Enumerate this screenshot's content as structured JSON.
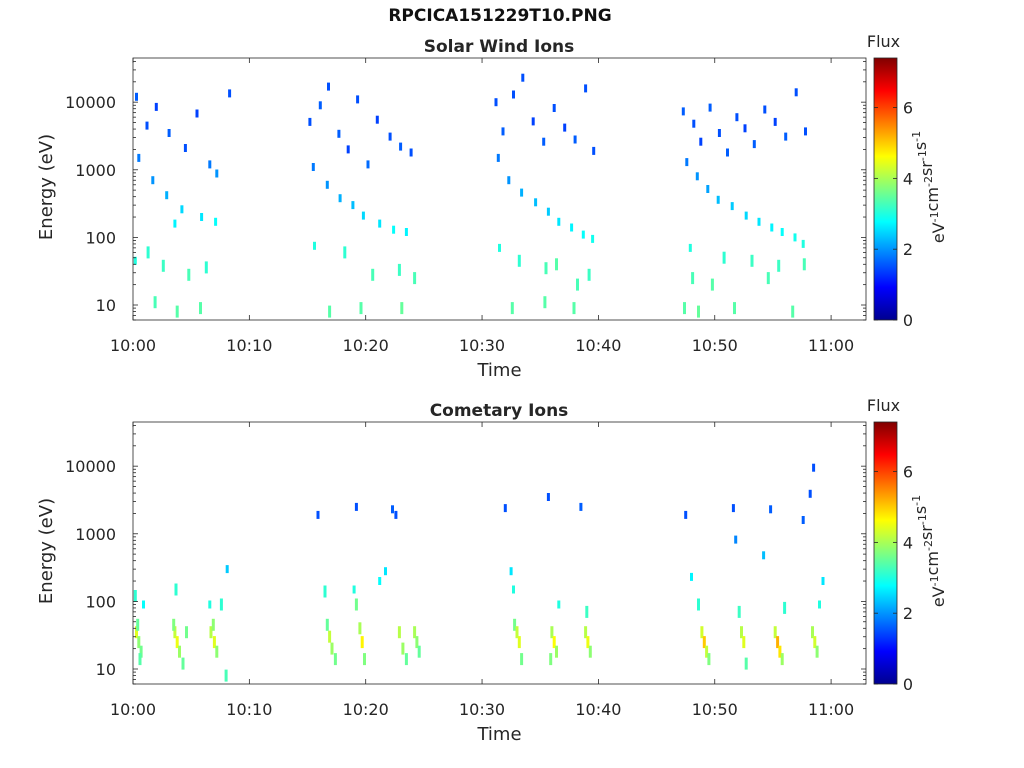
{
  "figure": {
    "title": "RPCICA151229T10.PNG"
  },
  "colorbar": {
    "label": "Flux",
    "unit_base": "eV",
    "unit_parts": [
      {
        "t": "eV",
        "sup": "-1"
      },
      {
        "t": "cm",
        "sup": "-2"
      },
      {
        "t": "sr",
        "sup": "-1"
      },
      {
        "t": "s",
        "sup": "-1"
      }
    ],
    "ticks": [
      "0",
      "2",
      "4",
      "6"
    ],
    "range": [
      0,
      7.4
    ],
    "colormap": "jet"
  },
  "chart_data": [
    {
      "type": "heatmap",
      "title": "Solar Wind Ions",
      "xlabel": "Time",
      "ylabel": "Energy (eV)",
      "y_scale": "log",
      "x_range": [
        "10:00",
        "11:03"
      ],
      "ylim": [
        6,
        45000
      ],
      "xticks": [
        "10:00",
        "10:10",
        "10:20",
        "10:30",
        "10:40",
        "10:50",
        "11:00"
      ],
      "yticks": [
        "10",
        "100",
        "1000",
        "10000"
      ],
      "segments": [
        {
          "start": "10:00",
          "end": "10:09"
        },
        {
          "start": "10:15",
          "end": "10:25"
        },
        {
          "start": "10:31",
          "end": "10:40"
        },
        {
          "start": "10:47",
          "end": "10:58"
        }
      ],
      "cells": [
        [
          0.3,
          12000,
          1.6
        ],
        [
          1.2,
          4500,
          1.5
        ],
        [
          2.0,
          8500,
          1.4
        ],
        [
          3.1,
          3500,
          1.6
        ],
        [
          4.5,
          2100,
          1.5
        ],
        [
          5.5,
          6800,
          1.4
        ],
        [
          6.6,
          1200,
          1.8
        ],
        [
          7.2,
          880,
          2.0
        ],
        [
          8.3,
          13500,
          1.5
        ],
        [
          0.5,
          1500,
          1.8
        ],
        [
          1.7,
          700,
          2.0
        ],
        [
          2.9,
          420,
          2.2
        ],
        [
          4.2,
          260,
          2.5
        ],
        [
          5.9,
          200,
          2.6
        ],
        [
          7.1,
          170,
          2.8
        ],
        [
          3.6,
          160,
          2.7
        ],
        [
          0.2,
          45,
          3.0
        ],
        [
          1.3,
          60,
          3.1
        ],
        [
          2.6,
          38,
          3.2
        ],
        [
          4.8,
          28,
          3.3
        ],
        [
          6.3,
          36,
          3.1
        ],
        [
          1.9,
          11,
          3.3
        ],
        [
          3.8,
          8,
          3.4
        ],
        [
          5.8,
          9,
          3.4
        ],
        [
          15.2,
          5100,
          1.5
        ],
        [
          16.1,
          9000,
          1.6
        ],
        [
          16.8,
          17000,
          1.5
        ],
        [
          17.7,
          3400,
          1.6
        ],
        [
          18.5,
          2000,
          1.4
        ],
        [
          19.3,
          11000,
          1.5
        ],
        [
          20.2,
          1200,
          1.7
        ],
        [
          21.0,
          5500,
          1.4
        ],
        [
          22.1,
          3100,
          1.5
        ],
        [
          23.0,
          2200,
          1.6
        ],
        [
          23.9,
          1800,
          1.5
        ],
        [
          15.5,
          1100,
          1.8
        ],
        [
          16.7,
          600,
          2.0
        ],
        [
          17.8,
          380,
          2.2
        ],
        [
          18.9,
          300,
          2.3
        ],
        [
          19.8,
          210,
          2.5
        ],
        [
          21.2,
          160,
          2.6
        ],
        [
          22.4,
          130,
          2.8
        ],
        [
          23.5,
          120,
          2.7
        ],
        [
          15.6,
          75,
          3.0
        ],
        [
          18.2,
          60,
          3.1
        ],
        [
          20.6,
          28,
          3.3
        ],
        [
          22.9,
          33,
          3.2
        ],
        [
          24.2,
          25,
          3.3
        ],
        [
          16.9,
          8,
          3.4
        ],
        [
          19.6,
          9,
          3.4
        ],
        [
          23.1,
          9,
          3.5
        ],
        [
          31.2,
          10000,
          1.5
        ],
        [
          31.8,
          3700,
          1.6
        ],
        [
          32.7,
          13000,
          1.5
        ],
        [
          33.5,
          23000,
          1.5
        ],
        [
          34.4,
          5200,
          1.4
        ],
        [
          35.3,
          2600,
          1.6
        ],
        [
          36.2,
          8200,
          1.5
        ],
        [
          37.1,
          4200,
          1.4
        ],
        [
          38.0,
          2800,
          1.6
        ],
        [
          38.9,
          16000,
          1.5
        ],
        [
          39.6,
          1900,
          1.5
        ],
        [
          31.4,
          1500,
          1.8
        ],
        [
          32.3,
          700,
          2.0
        ],
        [
          33.4,
          460,
          2.2
        ],
        [
          34.6,
          330,
          2.3
        ],
        [
          35.7,
          240,
          2.4
        ],
        [
          36.6,
          170,
          2.6
        ],
        [
          37.7,
          140,
          2.7
        ],
        [
          38.7,
          110,
          2.8
        ],
        [
          39.5,
          95,
          2.9
        ],
        [
          31.5,
          70,
          3.0
        ],
        [
          33.2,
          45,
          3.1
        ],
        [
          35.5,
          35,
          3.3
        ],
        [
          36.4,
          40,
          3.4
        ],
        [
          38.2,
          20,
          3.3
        ],
        [
          39.2,
          28,
          3.2
        ],
        [
          32.6,
          9,
          3.4
        ],
        [
          35.4,
          11,
          3.4
        ],
        [
          37.9,
          9,
          3.4
        ],
        [
          47.3,
          7300,
          1.6
        ],
        [
          48.2,
          4800,
          1.5
        ],
        [
          48.8,
          2600,
          1.4
        ],
        [
          49.6,
          8300,
          1.6
        ],
        [
          50.4,
          3500,
          1.5
        ],
        [
          51.1,
          1800,
          1.6
        ],
        [
          51.9,
          6000,
          1.5
        ],
        [
          52.6,
          4100,
          1.4
        ],
        [
          53.4,
          2400,
          1.6
        ],
        [
          54.3,
          7800,
          1.5
        ],
        [
          55.2,
          5100,
          1.4
        ],
        [
          56.1,
          3100,
          1.6
        ],
        [
          57.0,
          14000,
          1.5
        ],
        [
          57.8,
          3700,
          1.5
        ],
        [
          47.6,
          1300,
          1.8
        ],
        [
          48.5,
          800,
          2.0
        ],
        [
          49.4,
          520,
          2.1
        ],
        [
          50.3,
          360,
          2.3
        ],
        [
          51.5,
          290,
          2.4
        ],
        [
          52.7,
          210,
          2.5
        ],
        [
          53.8,
          170,
          2.6
        ],
        [
          54.9,
          140,
          2.7
        ],
        [
          55.8,
          120,
          2.8
        ],
        [
          56.9,
          100,
          2.9
        ],
        [
          57.6,
          80,
          3.0
        ],
        [
          47.9,
          70,
          3.0
        ],
        [
          50.8,
          50,
          3.1
        ],
        [
          53.2,
          45,
          3.2
        ],
        [
          55.5,
          38,
          3.2
        ],
        [
          57.7,
          40,
          3.3
        ],
        [
          48.1,
          25,
          3.3
        ],
        [
          49.8,
          20,
          3.4
        ],
        [
          54.6,
          25,
          3.3
        ],
        [
          47.4,
          9,
          3.4
        ],
        [
          48.6,
          8,
          3.5
        ],
        [
          51.7,
          9,
          3.4
        ],
        [
          56.7,
          8,
          3.4
        ]
      ]
    },
    {
      "type": "heatmap",
      "title": "Cometary Ions",
      "xlabel": "Time",
      "ylabel": "Energy (eV)",
      "y_scale": "log",
      "x_range": [
        "10:00",
        "11:03"
      ],
      "ylim": [
        6,
        45000
      ],
      "xticks": [
        "10:00",
        "10:10",
        "10:20",
        "10:30",
        "10:40",
        "10:50",
        "11:00"
      ],
      "yticks": [
        "10",
        "100",
        "1000",
        "10000"
      ],
      "cells": [
        [
          0.3,
          35,
          4.4
        ],
        [
          0.5,
          25,
          3.8
        ],
        [
          0.7,
          18,
          3.6
        ],
        [
          0.4,
          45,
          3.5
        ],
        [
          0.2,
          120,
          3.1
        ],
        [
          0.9,
          90,
          2.8
        ],
        [
          0.6,
          14,
          3.4
        ],
        [
          3.6,
          35,
          4.2
        ],
        [
          3.8,
          25,
          4.5
        ],
        [
          4.0,
          18,
          3.9
        ],
        [
          3.5,
          45,
          3.7
        ],
        [
          3.7,
          150,
          3.1
        ],
        [
          4.3,
          12,
          3.5
        ],
        [
          4.6,
          35,
          3.6
        ],
        [
          6.7,
          35,
          4.1
        ],
        [
          7.0,
          25,
          4.4
        ],
        [
          7.2,
          18,
          3.8
        ],
        [
          6.9,
          45,
          3.8
        ],
        [
          6.6,
          90,
          3.0
        ],
        [
          7.6,
          90,
          3.1
        ],
        [
          8.1,
          300,
          2.4
        ],
        [
          8.0,
          8,
          3.3
        ],
        [
          15.9,
          1900,
          1.5
        ],
        [
          16.5,
          140,
          3.1
        ],
        [
          16.7,
          45,
          3.5
        ],
        [
          16.9,
          30,
          4.2
        ],
        [
          17.1,
          20,
          3.9
        ],
        [
          17.4,
          14,
          3.6
        ],
        [
          19.0,
          150,
          3.0
        ],
        [
          19.2,
          90,
          3.6
        ],
        [
          19.5,
          40,
          4.0
        ],
        [
          19.7,
          25,
          4.7
        ],
        [
          19.9,
          14,
          3.7
        ],
        [
          19.2,
          2500,
          1.5
        ],
        [
          21.2,
          200,
          2.8
        ],
        [
          21.7,
          280,
          2.6
        ],
        [
          22.3,
          2300,
          1.6
        ],
        [
          22.6,
          1900,
          1.5
        ],
        [
          22.9,
          35,
          4.1
        ],
        [
          23.2,
          20,
          3.9
        ],
        [
          23.5,
          14,
          3.5
        ],
        [
          24.2,
          35,
          4.0
        ],
        [
          24.4,
          25,
          3.8
        ],
        [
          24.6,
          18,
          3.5
        ],
        [
          32.0,
          2400,
          1.5
        ],
        [
          32.5,
          280,
          2.6
        ],
        [
          32.8,
          45,
          3.6
        ],
        [
          33.0,
          35,
          4.2
        ],
        [
          33.2,
          25,
          4.4
        ],
        [
          33.4,
          14,
          3.6
        ],
        [
          32.7,
          150,
          3.0
        ],
        [
          35.7,
          3500,
          1.5
        ],
        [
          36.0,
          35,
          4.0
        ],
        [
          36.2,
          25,
          4.6
        ],
        [
          36.4,
          18,
          3.9
        ],
        [
          35.9,
          14,
          3.7
        ],
        [
          36.6,
          90,
          3.0
        ],
        [
          38.5,
          2500,
          1.6
        ],
        [
          38.9,
          35,
          4.1
        ],
        [
          39.1,
          25,
          4.5
        ],
        [
          39.3,
          18,
          3.8
        ],
        [
          39.0,
          70,
          3.2
        ],
        [
          47.5,
          1900,
          1.5
        ],
        [
          48.0,
          230,
          2.7
        ],
        [
          48.6,
          90,
          3.1
        ],
        [
          48.9,
          35,
          4.3
        ],
        [
          49.1,
          25,
          5.0
        ],
        [
          49.3,
          18,
          4.2
        ],
        [
          49.5,
          14,
          3.7
        ],
        [
          51.6,
          2400,
          1.5
        ],
        [
          51.8,
          820,
          1.9
        ],
        [
          52.1,
          70,
          3.2
        ],
        [
          52.3,
          35,
          4.1
        ],
        [
          52.5,
          25,
          4.4
        ],
        [
          52.7,
          12,
          3.4
        ],
        [
          54.2,
          480,
          2.3
        ],
        [
          54.8,
          2300,
          1.6
        ],
        [
          55.2,
          35,
          4.2
        ],
        [
          55.4,
          25,
          5.2
        ],
        [
          55.6,
          18,
          4.8
        ],
        [
          55.8,
          14,
          3.9
        ],
        [
          56.0,
          80,
          3.1
        ],
        [
          57.6,
          1600,
          1.6
        ],
        [
          58.2,
          3900,
          1.5
        ],
        [
          58.5,
          9500,
          1.5
        ],
        [
          58.4,
          35,
          4.0
        ],
        [
          58.6,
          25,
          4.3
        ],
        [
          58.8,
          18,
          3.8
        ],
        [
          59.3,
          200,
          2.6
        ],
        [
          59.0,
          90,
          3.0
        ]
      ]
    }
  ]
}
